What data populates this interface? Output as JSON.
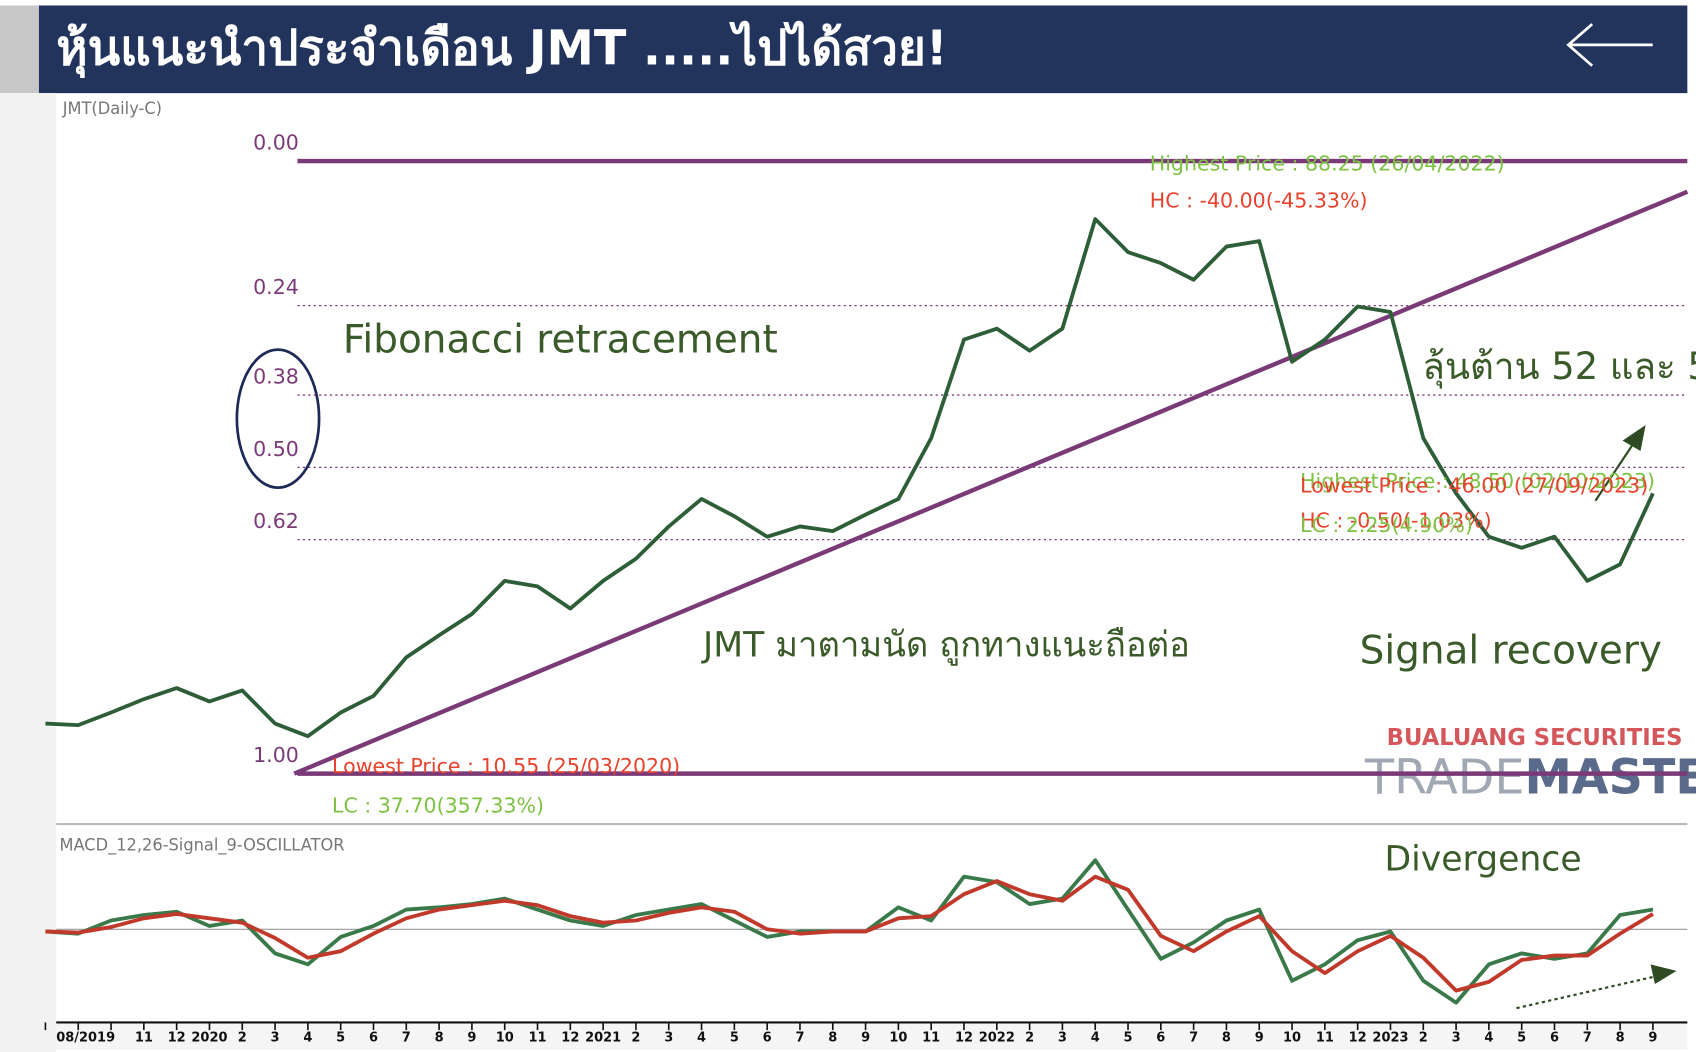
{
  "header": {
    "title": "หุ้นแนะนำประจำเดือน JMT .....ไปได้สวย!"
  },
  "watermark": {
    "company": "BUALUANG SECURITIES",
    "brand_a": "TRADE",
    "brand_b": "MASTER"
  },
  "chart_data": [
    {
      "type": "line",
      "title": "JMT(Daily-C)",
      "categories": [
        "08/2019",
        null,
        null,
        "11",
        "12",
        "2020",
        "2",
        "3",
        "4",
        "5",
        "6",
        "7",
        "8",
        "9",
        "10",
        "11",
        "12",
        "2021",
        "2",
        "3",
        "4",
        "5",
        "6",
        "7",
        "8",
        "9",
        "10",
        "11",
        "12",
        "2022",
        "2",
        "3",
        "4",
        "5",
        "6",
        "7",
        "8",
        "9",
        "10",
        "11",
        "12",
        "2023",
        "2",
        "3",
        "4",
        "5",
        "6",
        "7",
        "8",
        "9"
      ],
      "series": [
        {
          "color": "#2d5e38",
          "values": [
            16.9,
            16.7,
            18.3,
            20.0,
            21.4,
            19.7,
            21.1,
            16.9,
            15.3,
            18.3,
            20.4,
            25.3,
            28.1,
            30.8,
            35.0,
            34.3,
            31.5,
            35.0,
            37.8,
            41.9,
            45.4,
            43.2,
            40.6,
            41.9,
            41.3,
            43.4,
            45.4,
            53.1,
            65.6,
            67.0,
            64.2,
            67.0,
            80.9,
            76.7,
            75.3,
            73.2,
            77.4,
            78.1,
            62.8,
            65.6,
            69.8,
            69.1,
            53.1,
            46.1,
            40.6,
            39.2,
            40.6,
            35.0,
            37.1,
            46.1
          ]
        }
      ],
      "ylim": [
        4.43,
        96.17
      ],
      "yticks": [
        {
          "value": 88.25,
          "label": "0.00"
        },
        {
          "value": 69.91,
          "label": "0.24"
        },
        {
          "value": 58.57,
          "label": "0.38"
        },
        {
          "value": 49.4,
          "label": "0.50"
        },
        {
          "value": 40.23,
          "label": "0.62"
        },
        {
          "value": 10.55,
          "label": "1.00"
        }
      ],
      "annotations": [
        {
          "text": "Highest Price : 88.25 (26/04/2022)",
          "color": "#7dc242"
        },
        {
          "text": "HC : -40.00(-45.33%)",
          "color": "#e8412c"
        },
        {
          "text": "Lowest Price : 10.55 (25/03/2020)",
          "color": "#e8412c"
        },
        {
          "text": "LC : 37.70(357.33%)",
          "color": "#7dc242"
        },
        {
          "text": "Highest Price : 48.50 (02/10/2023)",
          "color": "#7dc242"
        },
        {
          "text": "Lowest Price : 46.00 (27/09/2023)",
          "color": "#e8412c"
        },
        {
          "text": "HC : -0.50(-1.03%)",
          "color": "#e8412c"
        },
        {
          "text": "LC : 2.25(4.90%)",
          "color": "#7dc242"
        }
      ],
      "notes": [
        "Fibonacci retracement",
        "ลุ้นต้าน 52 และ 5",
        "JMT มาตามนัด ถูกทางแนะถือต่อ",
        "Signal recovery",
        "Divergence"
      ],
      "note_color": "#3b5a2a"
    },
    {
      "type": "line",
      "title": "MACD_12,26-Signal_9-OSCILLATOR",
      "series": [
        {
          "color": "#3a7a4a",
          "values": [
            -0.1,
            -0.2,
            0.4,
            0.65,
            0.8,
            0.15,
            0.4,
            -1.1,
            -1.6,
            -0.35,
            0.15,
            0.9,
            1.0,
            1.15,
            1.4,
            0.9,
            0.4,
            0.15,
            0.65,
            0.9,
            1.15,
            0.4,
            -0.35,
            -0.1,
            -0.1,
            -0.1,
            1.0,
            0.4,
            2.4,
            2.15,
            1.15,
            1.4,
            3.15,
            0.9,
            -1.35,
            -0.6,
            0.4,
            0.9,
            -2.35,
            -1.6,
            -0.5,
            -0.1,
            -2.35,
            -3.35,
            -1.6,
            -1.1,
            -1.35,
            -1.1,
            0.65,
            0.9
          ]
        },
        {
          "color": "#c0392b",
          "values": [
            -0.1,
            -0.15,
            0.1,
            0.5,
            0.7,
            0.5,
            0.3,
            -0.4,
            -1.3,
            -1.0,
            -0.2,
            0.5,
            0.9,
            1.1,
            1.3,
            1.1,
            0.6,
            0.3,
            0.4,
            0.75,
            1.0,
            0.8,
            0.0,
            -0.2,
            -0.1,
            -0.1,
            0.5,
            0.6,
            1.6,
            2.2,
            1.6,
            1.3,
            2.4,
            1.8,
            -0.3,
            -1.0,
            -0.1,
            0.6,
            -1.0,
            -2.0,
            -1.0,
            -0.3,
            -1.3,
            -2.8,
            -2.4,
            -1.4,
            -1.2,
            -1.2,
            -0.2,
            0.7
          ]
        }
      ],
      "ylim": [
        -4.35,
        3.65
      ]
    }
  ]
}
